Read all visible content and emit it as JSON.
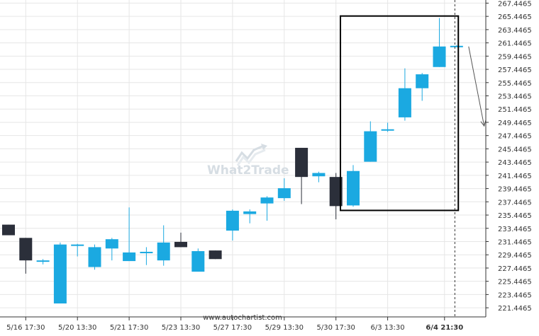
{
  "footer_text": "www.autochartist.com",
  "watermark": {
    "text": "What2Trade",
    "icon": "chart-arrow-logo-icon"
  },
  "colors": {
    "bull": "#1ba9e1",
    "bear": "#2b2f3a",
    "grid": "#e6e6e6",
    "axis": "#333333",
    "box": "#000000",
    "watermark": "#d6dde3"
  },
  "chart_data": {
    "type": "candlestick",
    "y_ticks": [
      "221.4465",
      "223.4465",
      "225.4465",
      "227.4465",
      "229.4465",
      "231.4465",
      "233.4465",
      "235.4465",
      "237.4465",
      "239.4465",
      "241.4465",
      "243.4465",
      "245.4465",
      "247.4465",
      "249.4465",
      "251.4465",
      "253.4465",
      "255.4465",
      "257.4465",
      "259.4465",
      "261.4465",
      "263.4465",
      "265.4465",
      "267.4465"
    ],
    "ylim": [
      220.07,
      267.92
    ],
    "x_ticks": [
      {
        "label": "5/16 17:30",
        "index": 1
      },
      {
        "label": "5/20 13:30",
        "index": 4
      },
      {
        "label": "5/21 17:30",
        "index": 7
      },
      {
        "label": "5/23 13:30",
        "index": 10
      },
      {
        "label": "5/27 17:30",
        "index": 13
      },
      {
        "label": "5/29 13:30",
        "index": 16
      },
      {
        "label": "5/30 17:30",
        "index": 19
      },
      {
        "label": "6/3 13:30",
        "index": 22
      },
      {
        "label": "6/4 21:30",
        "index": 25.3,
        "bold": true
      }
    ],
    "candles": [
      {
        "o": 234.0,
        "h": 234.0,
        "l": 232.4,
        "c": 232.4
      },
      {
        "o": 232.0,
        "h": 232.0,
        "l": 226.6,
        "c": 228.6
      },
      {
        "o": 228.5,
        "h": 228.8,
        "l": 228.0,
        "c": 228.6
      },
      {
        "o": 222.1,
        "h": 231.3,
        "l": 222.1,
        "c": 231.0
      },
      {
        "o": 230.9,
        "h": 231.1,
        "l": 229.2,
        "c": 231.0
      },
      {
        "o": 227.6,
        "h": 231.0,
        "l": 227.2,
        "c": 230.6
      },
      {
        "o": 230.4,
        "h": 232.0,
        "l": 228.6,
        "c": 231.8
      },
      {
        "o": 228.5,
        "h": 236.6,
        "l": 228.5,
        "c": 229.8
      },
      {
        "o": 229.9,
        "h": 230.6,
        "l": 227.9,
        "c": 229.9
      },
      {
        "o": 228.6,
        "h": 233.9,
        "l": 227.8,
        "c": 231.3
      },
      {
        "o": 231.4,
        "h": 232.8,
        "l": 230.6,
        "c": 230.6
      },
      {
        "o": 226.9,
        "h": 230.4,
        "l": 226.9,
        "c": 230.0
      },
      {
        "o": 230.1,
        "h": 230.1,
        "l": 228.8,
        "c": 228.8
      },
      {
        "o": 233.1,
        "h": 236.3,
        "l": 231.6,
        "c": 236.1
      },
      {
        "o": 235.6,
        "h": 236.3,
        "l": 234.2,
        "c": 236.0
      },
      {
        "o": 237.2,
        "h": 238.3,
        "l": 234.6,
        "c": 238.1
      },
      {
        "o": 238.0,
        "h": 241.0,
        "l": 237.6,
        "c": 239.5
      },
      {
        "o": 245.6,
        "h": 245.6,
        "l": 237.1,
        "c": 241.2
      },
      {
        "o": 241.3,
        "h": 242.0,
        "l": 240.4,
        "c": 241.8
      },
      {
        "o": 241.2,
        "h": 241.8,
        "l": 234.8,
        "c": 236.8
      },
      {
        "o": 236.9,
        "h": 243.0,
        "l": 236.7,
        "c": 242.1
      },
      {
        "o": 243.5,
        "h": 249.6,
        "l": 243.5,
        "c": 248.1
      },
      {
        "o": 248.3,
        "h": 249.4,
        "l": 248.0,
        "c": 248.4
      },
      {
        "o": 250.2,
        "h": 257.6,
        "l": 249.7,
        "c": 254.6
      },
      {
        "o": 254.6,
        "h": 256.9,
        "l": 252.7,
        "c": 256.7
      },
      {
        "o": 257.8,
        "h": 265.2,
        "l": 257.8,
        "c": 260.9
      },
      {
        "o": 260.8,
        "h": 261.1,
        "l": 260.8,
        "c": 261.0
      }
    ],
    "highlight_box": {
      "from_index": 20,
      "to_index": 26.1,
      "low": 236.15,
      "high": 265.5
    },
    "current_time_line_index": 25.9,
    "forecast_arrow": {
      "from_index": 26.7,
      "from_value": 260.9,
      "to_index": 27.6,
      "to_value": 248.9
    }
  }
}
